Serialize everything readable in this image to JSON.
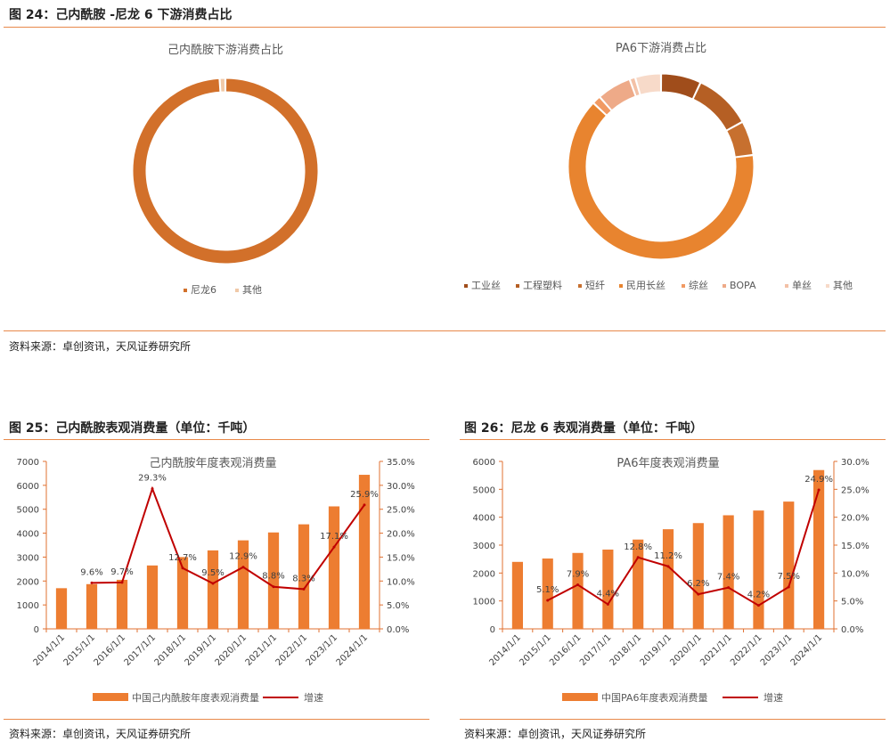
{
  "fig24": {
    "title": "图 24：己内酰胺 -尼龙 6 下游消费占比",
    "source": "资料来源：卓创资讯，天风证券研究所"
  },
  "fig25": {
    "title": "图 25：己内酰胺表观消费量（单位：千吨）",
    "source": "资料来源：卓创资讯，天风证券研究所"
  },
  "fig26": {
    "title": "图 26：尼龙 6 表观消费量（单位：千吨）",
    "source": "资料来源：卓创资讯，天风证券研究所"
  },
  "chart_data": [
    {
      "type": "pie",
      "title": "己内酰胺下游消费占比",
      "labels": [
        "尼龙6",
        "其他"
      ],
      "values": [
        99,
        1
      ],
      "colors": [
        "#d2702a",
        "#f0c9a8"
      ],
      "legend": "bottom"
    },
    {
      "type": "pie",
      "title": "PA6下游消费占比",
      "labels": [
        "工业丝",
        "工程塑料",
        "短纤",
        "民用长丝",
        "综丝",
        "BOPA",
        "单丝",
        "其他"
      ],
      "values": [
        7,
        10,
        6,
        64,
        1.5,
        6,
        1,
        4.5
      ],
      "colors": [
        "#a04d1b",
        "#b55f24",
        "#c7702f",
        "#e8842f",
        "#f19a63",
        "#eeaa88",
        "#f3c1a6",
        "#f7dac9"
      ],
      "legend": "bottom"
    },
    {
      "type": "bar",
      "title": "己内酰胺年度表观消费量",
      "categories": [
        "2014/1/1",
        "2015/1/1",
        "2016/1/1",
        "2017/1/1",
        "2018/1/1",
        "2019/1/1",
        "2020/1/1",
        "2021/1/1",
        "2022/1/1",
        "2023/1/1",
        "2024/1/1"
      ],
      "series": [
        {
          "name": "中国己内酰胺年度表观消费量",
          "type": "bar",
          "axis": "left",
          "values": [
            1700,
            1870,
            2050,
            2650,
            3000,
            3280,
            3700,
            4030,
            4370,
            5120,
            6440
          ]
        },
        {
          "name": "增速",
          "type": "line",
          "axis": "right",
          "values": [
            null,
            9.6,
            9.7,
            29.3,
            12.7,
            9.5,
            12.9,
            8.8,
            8.3,
            17.1,
            25.9
          ],
          "labels": [
            "",
            "9.6%",
            "9.7%",
            "29.3%",
            "12.7%",
            "9.5%",
            "12.9%",
            "8.8%",
            "8.3%",
            "17.1%",
            "25.9%"
          ]
        }
      ],
      "ylim_left": [
        0,
        7000
      ],
      "yticks_left": [
        "0",
        "1000",
        "2000",
        "3000",
        "4000",
        "5000",
        "6000",
        "7000"
      ],
      "ylim_right": [
        0,
        35
      ],
      "yticks_right": [
        "0.0%",
        "5.0%",
        "10.0%",
        "15.0%",
        "20.0%",
        "25.0%",
        "30.0%",
        "35.0%"
      ],
      "bar_color": "#ed7d31",
      "line_color": "#c00000",
      "legend": "bottom"
    },
    {
      "type": "bar",
      "title": "PA6年度表观消费量",
      "categories": [
        "2014/1/1",
        "2015/1/1",
        "2016/1/1",
        "2017/1/1",
        "2018/1/1",
        "2019/1/1",
        "2020/1/1",
        "2021/1/1",
        "2022/1/1",
        "2023/1/1",
        "2024/1/1"
      ],
      "series": [
        {
          "name": "中国PA6年度表观消费量",
          "type": "bar",
          "axis": "left",
          "values": [
            2400,
            2520,
            2720,
            2840,
            3200,
            3570,
            3790,
            4070,
            4240,
            4560,
            5690
          ]
        },
        {
          "name": "增速",
          "type": "line",
          "axis": "right",
          "values": [
            null,
            5.1,
            7.9,
            4.4,
            12.8,
            11.2,
            6.2,
            7.4,
            4.2,
            7.5,
            24.9
          ],
          "labels": [
            "",
            "5.1%",
            "7.9%",
            "4.4%",
            "12.8%",
            "11.2%",
            "6.2%",
            "7.4%",
            "4.2%",
            "7.5%",
            "24.9%"
          ]
        }
      ],
      "ylim_left": [
        0,
        6000
      ],
      "yticks_left": [
        "0",
        "1000",
        "2000",
        "3000",
        "4000",
        "5000",
        "6000"
      ],
      "ylim_right": [
        0,
        30
      ],
      "yticks_right": [
        "0.0%",
        "5.0%",
        "10.0%",
        "15.0%",
        "20.0%",
        "25.0%",
        "30.0%"
      ],
      "bar_color": "#ed7d31",
      "line_color": "#c00000",
      "legend": "bottom"
    }
  ]
}
